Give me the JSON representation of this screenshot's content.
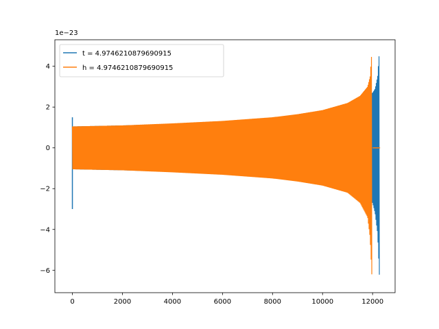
{
  "chart_data": {
    "type": "line",
    "title": "",
    "xlabel": "",
    "ylabel": "",
    "xlim": [
      -700,
      12900
    ],
    "ylim": [
      -7.1,
      5.3
    ],
    "y_scale_label": "1e−23",
    "x_ticks": [
      0,
      2000,
      4000,
      6000,
      8000,
      10000,
      12000
    ],
    "x_tick_labels": [
      "0",
      "2000",
      "4000",
      "6000",
      "8000",
      "10000",
      "12000"
    ],
    "y_ticks": [
      -6,
      -4,
      -2,
      0,
      2,
      4
    ],
    "y_tick_labels": [
      "−6",
      "−4",
      "−2",
      "0",
      "2",
      "4"
    ],
    "grid": false,
    "legend_position": "upper-left",
    "series": [
      {
        "name": "t = 4.9746210879690915",
        "color": "#1f77b4",
        "start_spike": {
          "x": 0,
          "max": 1.5,
          "min": -3.0
        },
        "envelope_upper": [
          [
            0,
            1.05
          ],
          [
            2000,
            1.1
          ],
          [
            4000,
            1.18
          ],
          [
            6000,
            1.3
          ],
          [
            8000,
            1.48
          ],
          [
            10000,
            1.8
          ],
          [
            11000,
            2.1
          ],
          [
            11500,
            2.4
          ],
          [
            12000,
            2.7
          ],
          [
            12100,
            2.9
          ],
          [
            12200,
            3.5
          ],
          [
            12280,
            4.9
          ],
          [
            12300,
            0
          ]
        ],
        "envelope_lower": [
          [
            0,
            -1.05
          ],
          [
            2000,
            -1.1
          ],
          [
            4000,
            -1.18
          ],
          [
            6000,
            -1.3
          ],
          [
            8000,
            -1.48
          ],
          [
            10000,
            -1.8
          ],
          [
            11000,
            -2.1
          ],
          [
            11500,
            -2.4
          ],
          [
            12000,
            -2.7
          ],
          [
            12100,
            -3.2
          ],
          [
            12200,
            -4.2
          ],
          [
            12280,
            -6.5
          ],
          [
            12300,
            0
          ]
        ]
      },
      {
        "name": "h = 4.9746210879690915",
        "color": "#ff7f0e",
        "envelope_upper": [
          [
            0,
            1.05
          ],
          [
            2000,
            1.1
          ],
          [
            4000,
            1.2
          ],
          [
            6000,
            1.32
          ],
          [
            8000,
            1.5
          ],
          [
            9000,
            1.65
          ],
          [
            10000,
            1.85
          ],
          [
            11000,
            2.2
          ],
          [
            11500,
            2.55
          ],
          [
            11800,
            3.0
          ],
          [
            11900,
            3.5
          ],
          [
            11980,
            4.9
          ],
          [
            12000,
            0
          ]
        ],
        "envelope_lower": [
          [
            0,
            -1.05
          ],
          [
            2000,
            -1.1
          ],
          [
            4000,
            -1.2
          ],
          [
            6000,
            -1.32
          ],
          [
            8000,
            -1.5
          ],
          [
            9000,
            -1.65
          ],
          [
            10000,
            -1.85
          ],
          [
            11000,
            -2.2
          ],
          [
            11500,
            -2.7
          ],
          [
            11800,
            -3.4
          ],
          [
            11900,
            -4.4
          ],
          [
            11980,
            -6.5
          ],
          [
            12000,
            0
          ]
        ],
        "flat_after": [
          12000,
          12300
        ]
      }
    ]
  }
}
